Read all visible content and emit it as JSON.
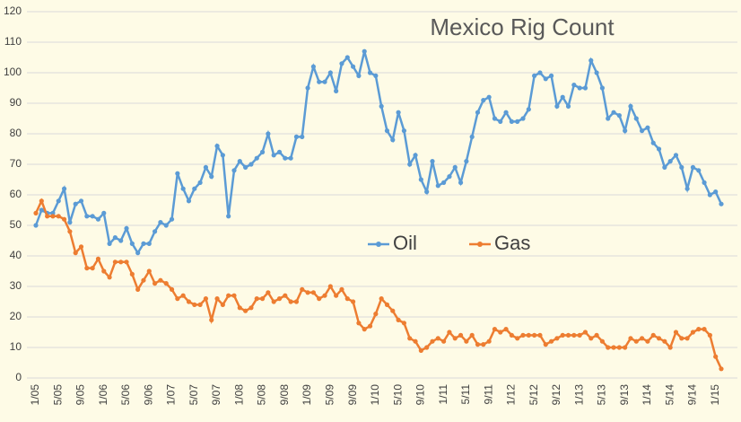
{
  "chart_data": {
    "type": "line",
    "title": "Mexico Rig Count",
    "categories": [
      "1/05",
      null,
      null,
      null,
      "5/05",
      null,
      null,
      null,
      "9/05",
      null,
      null,
      null,
      "1/06",
      null,
      null,
      null,
      "5/06",
      null,
      null,
      null,
      "9/06",
      null,
      null,
      null,
      "1/07",
      null,
      null,
      null,
      "5/07",
      null,
      null,
      null,
      "9/07",
      null,
      null,
      null,
      "1/08",
      null,
      null,
      null,
      "5/08",
      null,
      null,
      null,
      "9/08",
      null,
      null,
      null,
      "1/09",
      null,
      null,
      null,
      "5/09",
      null,
      null,
      null,
      "9/09",
      null,
      null,
      null,
      "1/10",
      null,
      null,
      null,
      "5/10",
      null,
      null,
      null,
      "9/10",
      null,
      null,
      null,
      "1/11",
      null,
      null,
      null,
      "5/11",
      null,
      null,
      null,
      "9/11",
      null,
      null,
      null,
      "1/12",
      null,
      null,
      null,
      "5/12",
      null,
      null,
      null,
      "9/12",
      null,
      null,
      null,
      "1/13",
      null,
      null,
      null,
      "5/13",
      null,
      null,
      null,
      "9/13",
      null,
      null,
      null,
      "1/14",
      null,
      null,
      null,
      "5/14",
      null,
      null,
      null,
      "9/14",
      null,
      null,
      null,
      "1/15",
      null
    ],
    "series": [
      {
        "name": "Oil",
        "color": "#5b9bd5",
        "values": [
          50,
          55,
          54,
          54,
          58,
          62,
          51,
          57,
          58,
          53,
          53,
          52,
          54,
          44,
          46,
          45,
          49,
          44,
          41,
          44,
          44,
          48,
          51,
          50,
          52,
          67,
          62,
          58,
          62,
          64,
          69,
          66,
          76,
          73,
          53,
          68,
          71,
          69,
          70,
          72,
          74,
          80,
          73,
          74,
          72,
          72,
          79,
          79,
          95,
          102,
          97,
          97,
          100,
          94,
          103,
          105,
          102,
          99,
          107,
          100,
          99,
          89,
          81,
          78,
          87,
          81,
          70,
          73,
          65,
          61,
          71,
          63,
          64,
          66,
          69,
          64,
          71,
          79,
          87,
          91,
          92,
          85,
          84,
          87,
          84,
          84,
          85,
          88,
          99,
          100,
          98,
          99,
          89,
          92,
          89,
          96,
          95,
          95,
          104,
          100,
          95,
          85,
          87,
          86,
          81,
          89,
          85,
          81,
          82,
          77,
          75,
          69,
          71,
          73,
          69,
          62,
          69,
          68,
          64,
          60,
          61,
          57
        ]
      },
      {
        "name": "Gas",
        "color": "#ed7d31",
        "values": [
          54,
          58,
          53,
          53,
          53,
          52,
          48,
          41,
          43,
          36,
          36,
          39,
          35,
          33,
          38,
          38,
          38,
          34,
          29,
          32,
          35,
          31,
          32,
          31,
          29,
          26,
          27,
          25,
          24,
          24,
          26,
          19,
          26,
          24,
          27,
          27,
          23,
          22,
          23,
          26,
          26,
          28,
          25,
          26,
          27,
          25,
          25,
          29,
          28,
          28,
          26,
          27,
          30,
          27,
          29,
          26,
          25,
          18,
          16,
          17,
          21,
          26,
          24,
          22,
          19,
          18,
          13,
          12,
          9,
          10,
          12,
          13,
          12,
          15,
          13,
          14,
          12,
          14,
          11,
          11,
          12,
          16,
          15,
          16,
          14,
          13,
          14,
          14,
          14,
          14,
          11,
          12,
          13,
          14,
          14,
          14,
          14,
          15,
          13,
          14,
          12,
          10,
          10,
          10,
          10,
          13,
          12,
          13,
          12,
          14,
          13,
          12,
          10,
          15,
          13,
          13,
          15,
          16,
          16,
          14,
          7,
          3
        ]
      }
    ],
    "ylim": [
      0,
      120
    ],
    "yticks": [
      0,
      10,
      20,
      30,
      40,
      50,
      60,
      70,
      80,
      90,
      100,
      110,
      120
    ],
    "grid": true,
    "legend": "center"
  }
}
